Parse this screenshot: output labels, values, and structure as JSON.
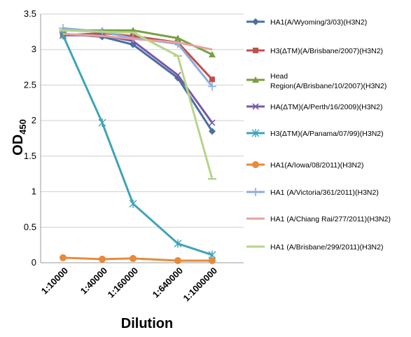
{
  "chart_data": {
    "type": "line",
    "xlabel": "Dilution",
    "ylabel_main": "OD",
    "ylabel_sub": "450",
    "categories": [
      "1:10000",
      "1:40000",
      "1:160000",
      "1:640000",
      "1:1000000"
    ],
    "ylim": [
      0,
      3.5
    ],
    "yticks": [
      "0",
      "0.5",
      "1",
      "1.5",
      "2",
      "2.5",
      "3",
      "3.5"
    ],
    "grid": "horizontal",
    "legend_position": "right",
    "series": [
      {
        "name": "HA1(A/Wyoming/3/03)(H3N2)",
        "color": "#4a6fa5",
        "marker": "diamond",
        "values": [
          3.22,
          3.18,
          3.07,
          2.6,
          1.85
        ]
      },
      {
        "name": "H3(ΔTM)(A/Brisbane/2007)(H3N2)",
        "color": "#c0504d",
        "marker": "square",
        "values": [
          3.2,
          3.23,
          3.19,
          3.1,
          2.58
        ]
      },
      {
        "name": "Head Region(A/Brisbane/10/2007)(H3N2)",
        "name_line1": "Head",
        "name_line2": "Region(A/Brisbane/10/2007)(H3N2)",
        "color": "#77a040",
        "marker": "triangle",
        "values": [
          3.27,
          3.27,
          3.27,
          3.16,
          2.93
        ]
      },
      {
        "name": "HA(ΔTM)(A/Perth/16/2009)(H3N2)",
        "color": "#7a5aa6",
        "marker": "x",
        "values": [
          3.2,
          3.2,
          3.12,
          2.64,
          1.97
        ]
      },
      {
        "name": "H3(ΔTM)(A/Panama/07/99)(H3N2)",
        "color": "#3fa3b8",
        "marker": "star",
        "values": [
          3.2,
          1.97,
          0.83,
          0.27,
          0.11
        ]
      },
      {
        "name": "HA1(A/Iowa/08/2011)(H3N2)",
        "color": "#e88a3a",
        "marker": "circle",
        "values": [
          0.07,
          0.05,
          0.06,
          0.03,
          0.03
        ]
      },
      {
        "name": "HA1 (A/Victoria/361/2011)(H3N2)",
        "color": "#8eaedc",
        "marker": "plus",
        "values": [
          3.3,
          3.25,
          3.16,
          3.08,
          2.48
        ]
      },
      {
        "name": "HA1 (A/Chiang Rai/277/2011)(H3N2)",
        "color": "#e4a2a0",
        "marker": "none",
        "values": [
          3.22,
          3.19,
          3.15,
          3.1,
          3.0
        ]
      },
      {
        "name": "HA1 (A/Brisbane/299/2011)(H3N2)",
        "color": "#b6d48a",
        "marker": "dash",
        "values": [
          3.27,
          3.25,
          3.24,
          2.91,
          1.18
        ]
      }
    ]
  }
}
